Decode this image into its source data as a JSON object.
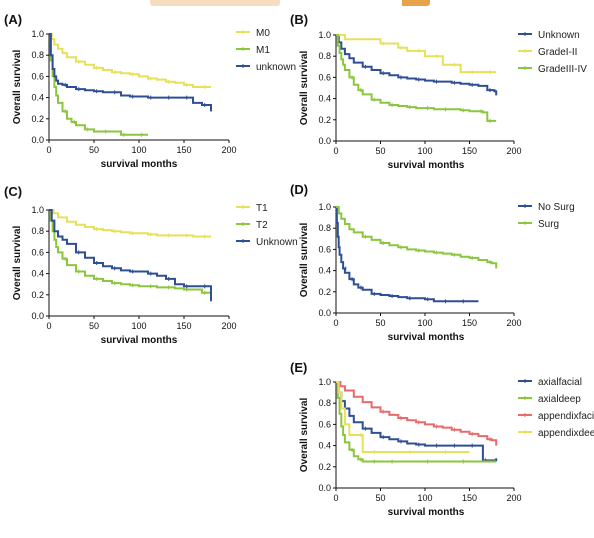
{
  "colors": {
    "yellow": "#e6e05a",
    "green": "#8cc63f",
    "blue": "#2f4f94",
    "red": "#e86a6a",
    "axis": "#111111"
  },
  "chart_data": [
    {
      "type": "line",
      "panel": "(A)",
      "xlabel": "survival months",
      "ylabel": "Overall survival",
      "xlim": [
        0,
        200
      ],
      "ylim": [
        0,
        1.0
      ],
      "xticks": [
        0,
        50,
        100,
        150,
        200
      ],
      "yticks": [
        0.0,
        0.2,
        0.4,
        0.6,
        0.8,
        1.0
      ],
      "legend_position": "top-right",
      "series": [
        {
          "name": "M0",
          "color": "yellow",
          "x": [
            0,
            3,
            6,
            10,
            15,
            20,
            30,
            40,
            50,
            60,
            70,
            80,
            90,
            100,
            110,
            120,
            130,
            140,
            150,
            160,
            170,
            180
          ],
          "y": [
            1.0,
            0.95,
            0.9,
            0.86,
            0.82,
            0.78,
            0.74,
            0.71,
            0.68,
            0.66,
            0.64,
            0.63,
            0.62,
            0.6,
            0.58,
            0.57,
            0.55,
            0.54,
            0.52,
            0.5,
            0.5,
            0.5
          ]
        },
        {
          "name": "M1",
          "color": "green",
          "x": [
            0,
            2,
            4,
            6,
            8,
            10,
            15,
            20,
            25,
            30,
            40,
            50,
            60,
            70,
            80,
            90,
            100,
            110
          ],
          "y": [
            1.0,
            0.75,
            0.6,
            0.5,
            0.42,
            0.35,
            0.27,
            0.2,
            0.17,
            0.14,
            0.1,
            0.08,
            0.08,
            0.08,
            0.05,
            0.05,
            0.05,
            0.05
          ]
        },
        {
          "name": "unknown",
          "color": "blue",
          "x": [
            0,
            2,
            4,
            6,
            8,
            10,
            15,
            20,
            30,
            40,
            50,
            60,
            70,
            80,
            90,
            100,
            110,
            120,
            130,
            140,
            150,
            160,
            170,
            178,
            180
          ],
          "y": [
            1.0,
            0.8,
            0.67,
            0.6,
            0.56,
            0.53,
            0.52,
            0.5,
            0.48,
            0.47,
            0.46,
            0.45,
            0.45,
            0.42,
            0.41,
            0.41,
            0.4,
            0.4,
            0.4,
            0.4,
            0.4,
            0.35,
            0.33,
            0.33,
            0.27
          ]
        }
      ]
    },
    {
      "type": "line",
      "panel": "(B)",
      "xlabel": "survival months",
      "ylabel": "Overall survival",
      "xlim": [
        0,
        200
      ],
      "ylim": [
        0,
        1.0
      ],
      "xticks": [
        0,
        50,
        100,
        150,
        200
      ],
      "yticks": [
        0.0,
        0.2,
        0.4,
        0.6,
        0.8,
        1.0
      ],
      "legend_position": "top-right",
      "series": [
        {
          "name": "Unknown",
          "color": "blue",
          "x": [
            0,
            3,
            6,
            10,
            15,
            20,
            30,
            40,
            50,
            60,
            70,
            80,
            90,
            100,
            110,
            120,
            130,
            140,
            150,
            160,
            170,
            178,
            180
          ],
          "y": [
            1.0,
            0.93,
            0.87,
            0.82,
            0.78,
            0.74,
            0.7,
            0.67,
            0.64,
            0.62,
            0.6,
            0.59,
            0.58,
            0.57,
            0.56,
            0.56,
            0.55,
            0.54,
            0.53,
            0.52,
            0.48,
            0.47,
            0.43
          ]
        },
        {
          "name": "GradeI-II",
          "color": "yellow",
          "x": [
            0,
            5,
            10,
            20,
            30,
            40,
            50,
            60,
            70,
            80,
            90,
            100,
            110,
            120,
            130,
            140,
            150,
            160,
            170,
            180
          ],
          "y": [
            1.0,
            1.0,
            0.96,
            0.96,
            0.96,
            0.96,
            0.92,
            0.92,
            0.88,
            0.85,
            0.85,
            0.8,
            0.8,
            0.72,
            0.72,
            0.65,
            0.65,
            0.65,
            0.65,
            0.65
          ]
        },
        {
          "name": "GradeIII-IV",
          "color": "green",
          "x": [
            0,
            2,
            4,
            6,
            8,
            10,
            15,
            20,
            25,
            30,
            40,
            50,
            60,
            70,
            80,
            90,
            100,
            110,
            120,
            130,
            140,
            150,
            160,
            165,
            170,
            175,
            180
          ],
          "y": [
            1.0,
            0.9,
            0.83,
            0.77,
            0.72,
            0.67,
            0.6,
            0.53,
            0.48,
            0.44,
            0.39,
            0.36,
            0.34,
            0.33,
            0.32,
            0.31,
            0.31,
            0.3,
            0.3,
            0.3,
            0.29,
            0.28,
            0.28,
            0.27,
            0.19,
            0.19,
            0.19
          ]
        }
      ]
    },
    {
      "type": "line",
      "panel": "(C)",
      "xlabel": "survival months",
      "ylabel": "Overall survival",
      "xlim": [
        0,
        200
      ],
      "ylim": [
        0,
        1.0
      ],
      "xticks": [
        0,
        50,
        100,
        150,
        200
      ],
      "yticks": [
        0.0,
        0.2,
        0.4,
        0.6,
        0.8,
        1.0
      ],
      "legend_position": "top-right",
      "series": [
        {
          "name": "T1",
          "color": "yellow",
          "x": [
            0,
            5,
            10,
            20,
            30,
            40,
            50,
            60,
            70,
            80,
            90,
            100,
            110,
            120,
            130,
            140,
            150,
            160,
            170,
            180
          ],
          "y": [
            1.0,
            0.97,
            0.93,
            0.89,
            0.86,
            0.84,
            0.82,
            0.81,
            0.8,
            0.79,
            0.78,
            0.78,
            0.77,
            0.76,
            0.76,
            0.76,
            0.76,
            0.75,
            0.75,
            0.75
          ]
        },
        {
          "name": "T2",
          "color": "green",
          "x": [
            0,
            2,
            4,
            6,
            8,
            10,
            15,
            20,
            30,
            40,
            50,
            60,
            70,
            80,
            90,
            100,
            110,
            120,
            130,
            140,
            150,
            160,
            170,
            180
          ],
          "y": [
            1.0,
            0.9,
            0.8,
            0.72,
            0.65,
            0.6,
            0.54,
            0.48,
            0.42,
            0.38,
            0.35,
            0.33,
            0.31,
            0.3,
            0.29,
            0.28,
            0.28,
            0.27,
            0.27,
            0.26,
            0.25,
            0.25,
            0.22,
            0.15
          ]
        },
        {
          "name": "Unknown",
          "color": "blue",
          "x": [
            0,
            3,
            6,
            10,
            15,
            20,
            30,
            40,
            50,
            60,
            70,
            80,
            90,
            100,
            110,
            120,
            130,
            140,
            150,
            160,
            170,
            175,
            180
          ],
          "y": [
            1.0,
            0.9,
            0.8,
            0.75,
            0.72,
            0.68,
            0.6,
            0.55,
            0.5,
            0.47,
            0.45,
            0.43,
            0.42,
            0.42,
            0.4,
            0.38,
            0.35,
            0.3,
            0.28,
            0.28,
            0.28,
            0.28,
            0.14
          ]
        }
      ]
    },
    {
      "type": "line",
      "panel": "(D)",
      "xlabel": "survival months",
      "ylabel": "Overall survival",
      "xlim": [
        0,
        200
      ],
      "ylim": [
        0,
        1.0
      ],
      "xticks": [
        0,
        50,
        100,
        150,
        200
      ],
      "yticks": [
        0.0,
        0.2,
        0.4,
        0.6,
        0.8,
        1.0
      ],
      "legend_position": "top-right",
      "series": [
        {
          "name": "No Surg",
          "color": "blue",
          "x": [
            0,
            1,
            2,
            3,
            4,
            6,
            8,
            10,
            15,
            20,
            25,
            30,
            40,
            50,
            60,
            70,
            80,
            90,
            100,
            110,
            120,
            130,
            140,
            150,
            160
          ],
          "y": [
            1.0,
            0.85,
            0.72,
            0.62,
            0.55,
            0.48,
            0.42,
            0.38,
            0.32,
            0.27,
            0.24,
            0.22,
            0.18,
            0.17,
            0.16,
            0.15,
            0.14,
            0.14,
            0.13,
            0.11,
            0.11,
            0.11,
            0.11,
            0.11,
            0.11
          ]
        },
        {
          "name": "Surg",
          "color": "green",
          "x": [
            0,
            3,
            6,
            10,
            15,
            20,
            30,
            40,
            50,
            60,
            70,
            80,
            90,
            100,
            110,
            120,
            130,
            140,
            150,
            160,
            170,
            175,
            180
          ],
          "y": [
            1.0,
            0.94,
            0.89,
            0.84,
            0.79,
            0.76,
            0.72,
            0.69,
            0.66,
            0.64,
            0.62,
            0.6,
            0.59,
            0.58,
            0.57,
            0.56,
            0.55,
            0.53,
            0.52,
            0.5,
            0.48,
            0.47,
            0.42
          ]
        }
      ]
    },
    {
      "type": "line",
      "panel": "(E)",
      "xlabel": "survival months",
      "ylabel": "Overall survival",
      "xlim": [
        0,
        200
      ],
      "ylim": [
        0,
        1.0
      ],
      "xticks": [
        0,
        50,
        100,
        150,
        200
      ],
      "yticks": [
        0.0,
        0.2,
        0.4,
        0.6,
        0.8,
        1.0
      ],
      "legend_position": "top-right",
      "series": [
        {
          "name": "axialfacial",
          "color": "blue",
          "x": [
            0,
            3,
            6,
            10,
            15,
            20,
            30,
            40,
            50,
            60,
            70,
            80,
            90,
            100,
            110,
            120,
            130,
            140,
            150,
            160,
            165,
            170,
            180
          ],
          "y": [
            1.0,
            0.9,
            0.82,
            0.75,
            0.68,
            0.62,
            0.56,
            0.52,
            0.48,
            0.46,
            0.44,
            0.42,
            0.41,
            0.4,
            0.4,
            0.4,
            0.4,
            0.4,
            0.4,
            0.4,
            0.26,
            0.26,
            0.28
          ]
        },
        {
          "name": "axialdeep",
          "color": "green",
          "x": [
            0,
            2,
            4,
            6,
            8,
            10,
            15,
            20,
            25,
            30,
            40,
            50,
            60,
            80,
            100,
            120,
            140,
            160,
            180
          ],
          "y": [
            1.0,
            0.85,
            0.7,
            0.58,
            0.5,
            0.43,
            0.36,
            0.3,
            0.27,
            0.25,
            0.25,
            0.25,
            0.25,
            0.25,
            0.25,
            0.25,
            0.25,
            0.25,
            0.25
          ]
        },
        {
          "name": "appendixfacial",
          "color": "red",
          "x": [
            0,
            5,
            10,
            20,
            30,
            40,
            50,
            60,
            70,
            80,
            90,
            100,
            110,
            120,
            130,
            140,
            150,
            160,
            170,
            175,
            180
          ],
          "y": [
            1.0,
            0.96,
            0.92,
            0.86,
            0.81,
            0.76,
            0.72,
            0.69,
            0.66,
            0.64,
            0.62,
            0.6,
            0.58,
            0.57,
            0.55,
            0.53,
            0.51,
            0.49,
            0.46,
            0.45,
            0.4
          ]
        },
        {
          "name": "appendixdeep",
          "color": "yellow",
          "x": [
            0,
            3,
            6,
            10,
            15,
            20,
            25,
            30,
            40,
            60,
            80,
            100,
            120,
            140,
            150
          ],
          "y": [
            1.0,
            0.9,
            0.75,
            0.6,
            0.5,
            0.5,
            0.5,
            0.34,
            0.34,
            0.34,
            0.34,
            0.34,
            0.34,
            0.34,
            0.34
          ]
        }
      ]
    }
  ]
}
